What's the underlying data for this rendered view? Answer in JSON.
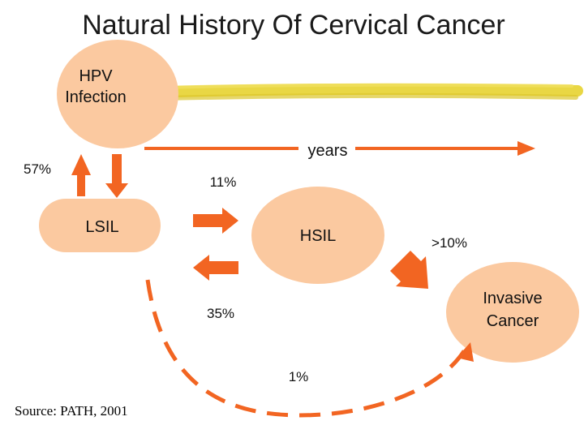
{
  "title": "Natural History Of Cervical Cancer",
  "nodes": {
    "hpv": {
      "line1": "HPV",
      "line2": "Infection"
    },
    "lsil": {
      "label": "LSIL"
    },
    "hsil": {
      "label": "HSIL"
    },
    "cancer": {
      "line1": "Invasive",
      "line2": "Cancer"
    }
  },
  "timeline": {
    "label": "years"
  },
  "rates": {
    "hpv_lsil": "57%",
    "lsil_hsil": "11%",
    "hsil_cancer": ">10%",
    "hsil_lsil": "35%",
    "lsil_cancer": "1%"
  },
  "source": "Source: PATH, 2001",
  "colors": {
    "node_fill": "#FBC9A0",
    "arrow": "#F26522",
    "highlighter": "#E8D53A"
  }
}
